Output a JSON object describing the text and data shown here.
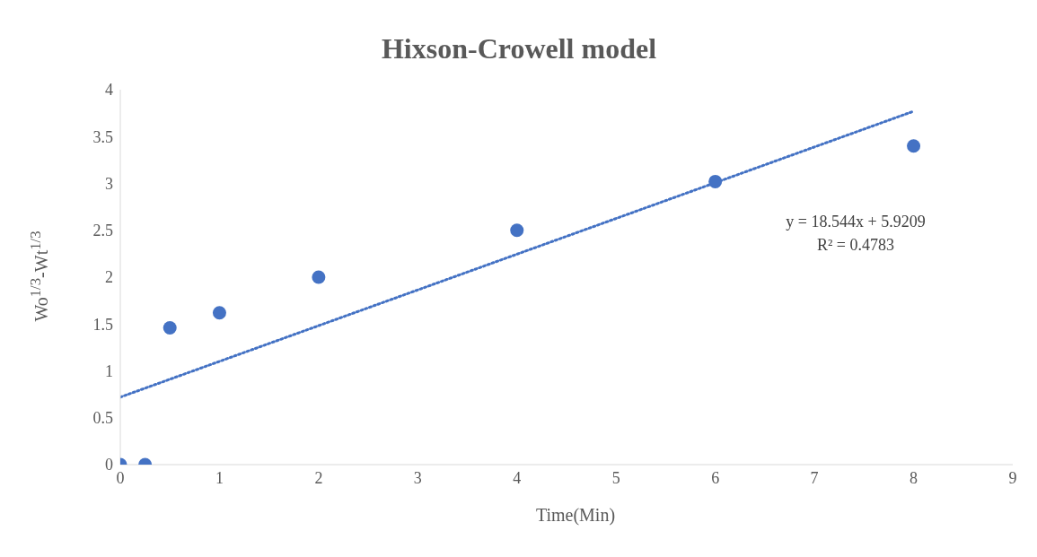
{
  "chart_data": {
    "type": "scatter",
    "title": "Hixson-Crowell model",
    "xlabel": "Time(Min)",
    "ylabel": "Wo$^{1/3}$-Wt$^{1/3}$",
    "x": [
      0,
      0.25,
      0.5,
      1,
      2,
      4,
      6,
      8
    ],
    "series": [
      {
        "color": "#4472c4",
        "values": [
          0,
          0,
          1.46,
          1.62,
          2.0,
          2.5,
          3.02,
          3.4
        ],
        "marker": "circle"
      },
      {
        "type": "line",
        "color": "#4472c4",
        "x": [
          0,
          8
        ],
        "values": [
          0.72,
          3.77
        ],
        "line_style": "dotted",
        "marker": "none"
      }
    ],
    "xlim": [
      0,
      9
    ],
    "xticks": [
      0,
      1,
      2,
      3,
      4,
      5,
      6,
      7,
      8,
      9
    ],
    "ylim": [
      0,
      4
    ],
    "yticks": [
      0,
      0.5,
      1,
      1.5,
      2,
      2.5,
      3,
      3.5,
      4
    ],
    "grid": false,
    "legend": false,
    "annotations": [
      "y = 18.544x + 5.9209",
      "R² = 0.4783"
    ]
  }
}
